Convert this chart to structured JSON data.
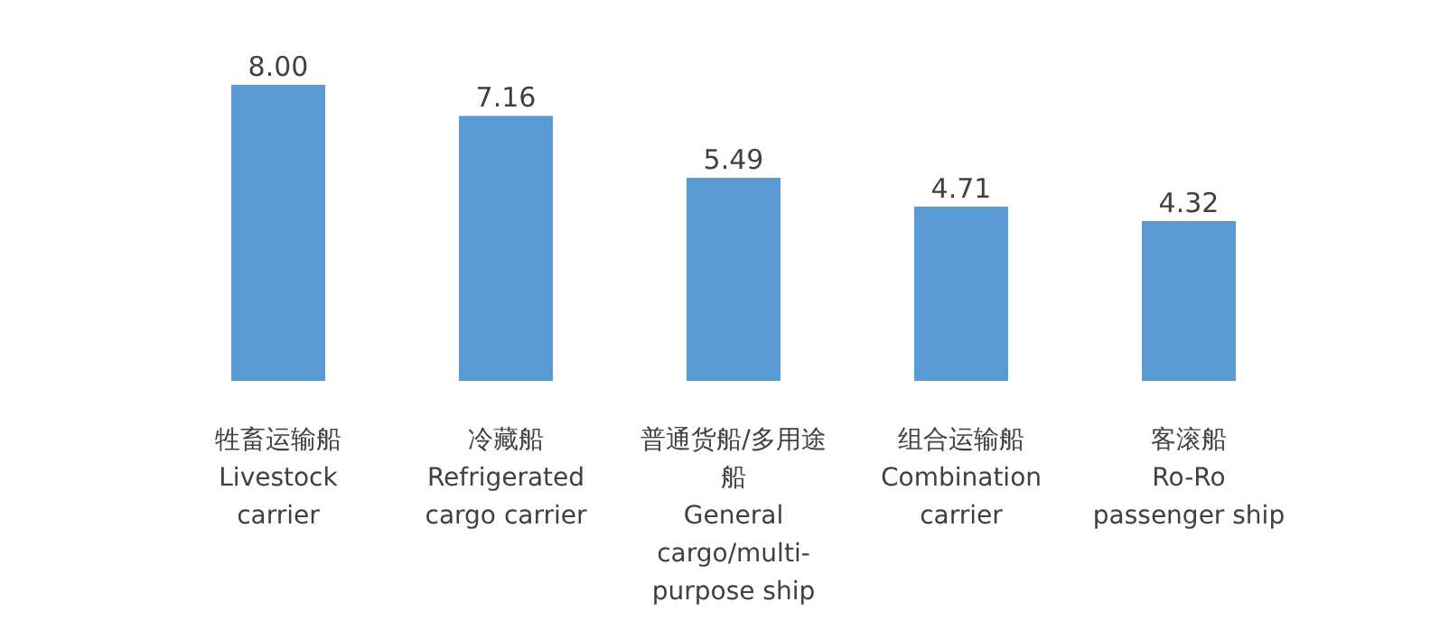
{
  "chart_data": {
    "type": "bar",
    "categories": [
      "牲畜运输船\nLivestock carrier",
      "冷藏船\nRefrigerated cargo carrier",
      "普通货船/多用途船\nGeneral cargo/multi-purpose ship",
      "组合运输船\nCombination carrier",
      "客滚船\nRo-Ro passenger ship"
    ],
    "values": [
      8.0,
      7.16,
      5.49,
      4.71,
      4.32
    ],
    "color": "#5b9bd5",
    "value_labels": [
      "8.00",
      "7.16",
      "5.49",
      "4.71",
      "4.32"
    ]
  }
}
